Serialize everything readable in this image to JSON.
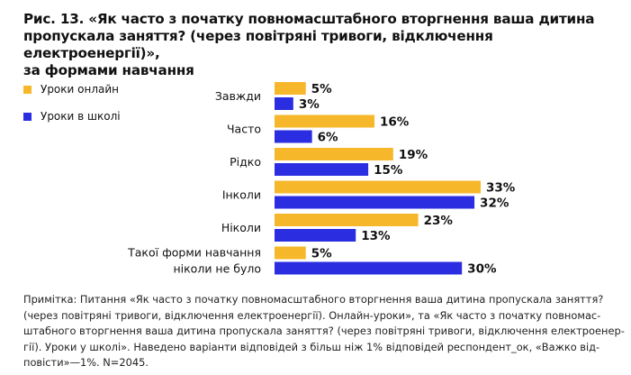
{
  "title_lines": [
    "Рис. 13. «Як часто з початку повномасштабного вторгнення ваша дитина",
    "пропускала заняття? (через повітряні тривоги, відключення електроенергії)»,",
    "за формами навчання"
  ],
  "colors": {
    "online": "#f6b72b",
    "school": "#2b2de0"
  },
  "chart_data": {
    "type": "bar",
    "orientation": "horizontal",
    "categories": [
      "Завжди",
      "Часто",
      "Рідко",
      "Інколи",
      "Ніколи",
      "Такої форми навчання\nніколи не було"
    ],
    "series": [
      {
        "name": "Уроки онлайн",
        "values": [
          5,
          16,
          19,
          33,
          23,
          5
        ]
      },
      {
        "name": "Уроки в школі",
        "values": [
          3,
          6,
          15,
          32,
          13,
          30
        ]
      }
    ],
    "value_suffix": "%",
    "xlim": [
      0,
      33
    ],
    "grid": false,
    "legend_position": "top-left"
  },
  "note_lines": [
    "Примітка: Питання «Як часто з початку повномасштабного вторгнення ваша дитина пропускала заняття?",
    "(через повітряні тривоги, відключення електроенергії). Онлайн-уроки», та «Як часто з початку повномас-",
    "штабного вторгнення ваша дитина пропускала заняття? (через повітряні тривоги, відключення електроенер-",
    "гії). Уроки у школі». Наведено варіанти відповідей з більш ніж 1% відповідей респондент_ок, «Важко від-",
    "повісти»—1%. N=2045."
  ]
}
